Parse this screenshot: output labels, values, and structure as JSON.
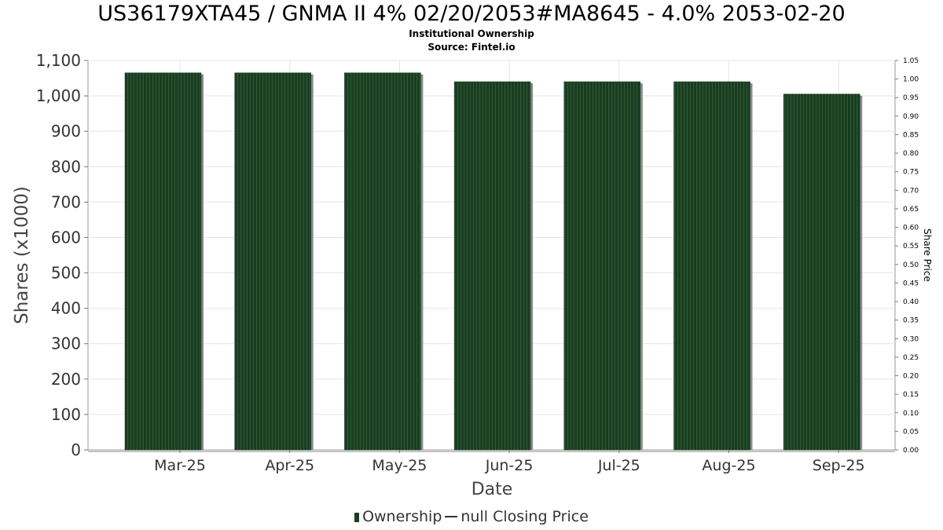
{
  "chart_data": {
    "type": "bar",
    "title": "US36179XTA45 / GNMA II 4% 02/20/2053#MA8645 - 4.0% 2053-02-20",
    "subtitle": "Institutional Ownership",
    "source": "Source: Fintel.io",
    "xlabel": "Date",
    "ylabel": "Shares (x1000)",
    "y2label": "Share Price",
    "categories": [
      "Mar-25",
      "Apr-25",
      "May-25",
      "Jun-25",
      "Jul-25",
      "Aug-25",
      "Sep-25"
    ],
    "series": [
      {
        "name": "Ownership",
        "values": [
          1065,
          1065,
          1065,
          1040,
          1040,
          1040,
          1005
        ]
      }
    ],
    "ylim": [
      0,
      1100
    ],
    "yticks": [
      "0",
      "100",
      "200",
      "300",
      "400",
      "500",
      "600",
      "700",
      "800",
      "900",
      "1,000",
      "1,100"
    ],
    "y2lim": [
      0,
      1.05
    ],
    "y2ticks": [
      "0.00",
      "0.05",
      "0.10",
      "0.15",
      "0.20",
      "0.25",
      "0.30",
      "0.35",
      "0.40",
      "0.45",
      "0.50",
      "0.55",
      "0.60",
      "0.65",
      "0.70",
      "0.75",
      "0.80",
      "0.85",
      "0.90",
      "0.95",
      "1.00",
      "1.05"
    ],
    "grid": true,
    "legend": {
      "position": "bottom",
      "items": [
        "Ownership",
        "null Closing Price"
      ]
    },
    "colors": {
      "bar": "#1a3d22",
      "bar_stripe": "#2c5a34",
      "bar_shadow": "#8a8a8a",
      "grid": "#e4e4e4"
    }
  }
}
